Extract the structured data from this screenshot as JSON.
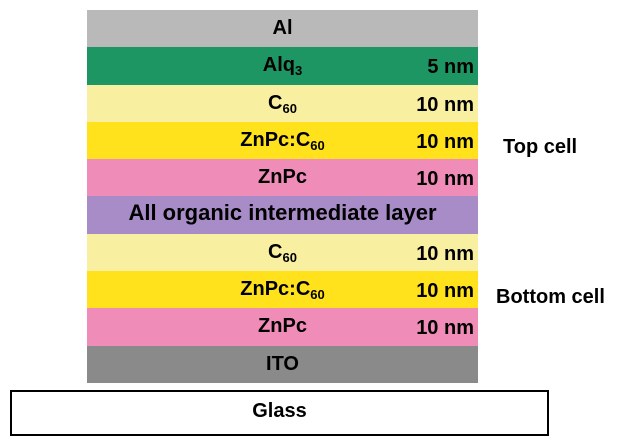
{
  "layers": [
    {
      "name": "Al",
      "thickness": "",
      "color": "#b9b9b9"
    },
    {
      "name": "Alq",
      "sub": "3",
      "thickness": "5 nm",
      "color": "#1e9664"
    },
    {
      "name": "C",
      "sub": "60",
      "thickness": "10 nm",
      "color": "#f8f0a0"
    },
    {
      "name": "ZnPc:C",
      "sub": "60",
      "thickness": "10 nm",
      "color": "#ffe21c"
    },
    {
      "name": "ZnPc",
      "sub": "",
      "thickness": "10 nm",
      "color": "#f08cb8"
    },
    {
      "name": "All organic intermediate layer",
      "thickness": "",
      "color": "#a88cc8"
    },
    {
      "name": "C",
      "sub": "60",
      "thickness": "10 nm",
      "color": "#f8f0a0"
    },
    {
      "name": "ZnPc:C",
      "sub": "60",
      "thickness": "10 nm",
      "color": "#ffe21c"
    },
    {
      "name": "ZnPc",
      "sub": "",
      "thickness": "10 nm",
      "color": "#f08cb8"
    },
    {
      "name": "ITO",
      "thickness": "",
      "color": "#8a8a8a"
    }
  ],
  "substrate": {
    "name": "Glass",
    "color": "#ffffff"
  },
  "labels": {
    "top_cell": "Top cell",
    "bottom_cell": "Bottom cell"
  }
}
